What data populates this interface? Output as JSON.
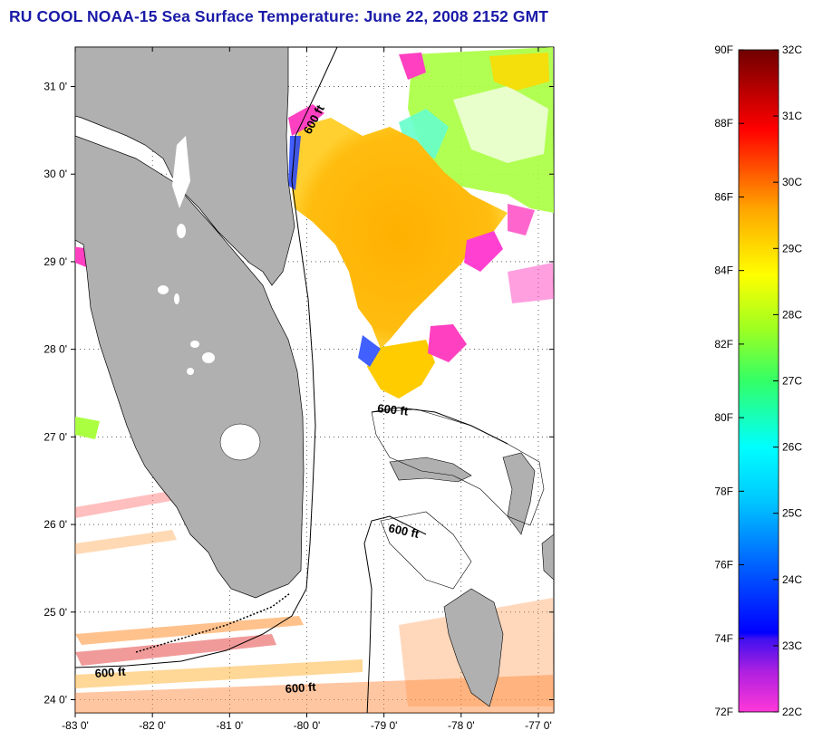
{
  "title": "RU COOL  NOAA-15  Sea Surface Temperature:  June 22, 2008 2152 GMT",
  "map": {
    "lon_range": [
      -83,
      -76.8
    ],
    "lat_range": [
      23.85,
      31.45
    ],
    "x_ticks": [
      "-83 0'",
      "-82 0'",
      "-81 0'",
      "-80 0'",
      "-79 0'",
      "-78 0'",
      "-77 0'"
    ],
    "y_ticks": [
      "31 0'",
      "30 0'",
      "29 0'",
      "28 0'",
      "27 0'",
      "26 0'",
      "25 0'",
      "24 0'"
    ],
    "grid": "dotted",
    "land_color": "#b0b0b0",
    "contour": "600 ft",
    "contour_labels": [
      "600 ft",
      "600 ft",
      "600 ft",
      "600 ft",
      "600 ft"
    ]
  },
  "colorbar": {
    "fahrenheit_labels": [
      "90F",
      "88F",
      "86F",
      "84F",
      "82F",
      "80F",
      "78F",
      "76F",
      "74F",
      "72F"
    ],
    "celsius_labels": [
      "32C",
      "31C",
      "30C",
      "29C",
      "28C",
      "27C",
      "26C",
      "25C",
      "24C",
      "23C",
      "22C"
    ],
    "range_f": [
      72,
      90
    ],
    "range_c": [
      22,
      32
    ],
    "colors": [
      "#ff38d8",
      "#8c28e6",
      "#0000ff",
      "#00a0ff",
      "#00ffff",
      "#33ff66",
      "#ffff00",
      "#ffa500",
      "#ff0000",
      "#750000"
    ]
  }
}
